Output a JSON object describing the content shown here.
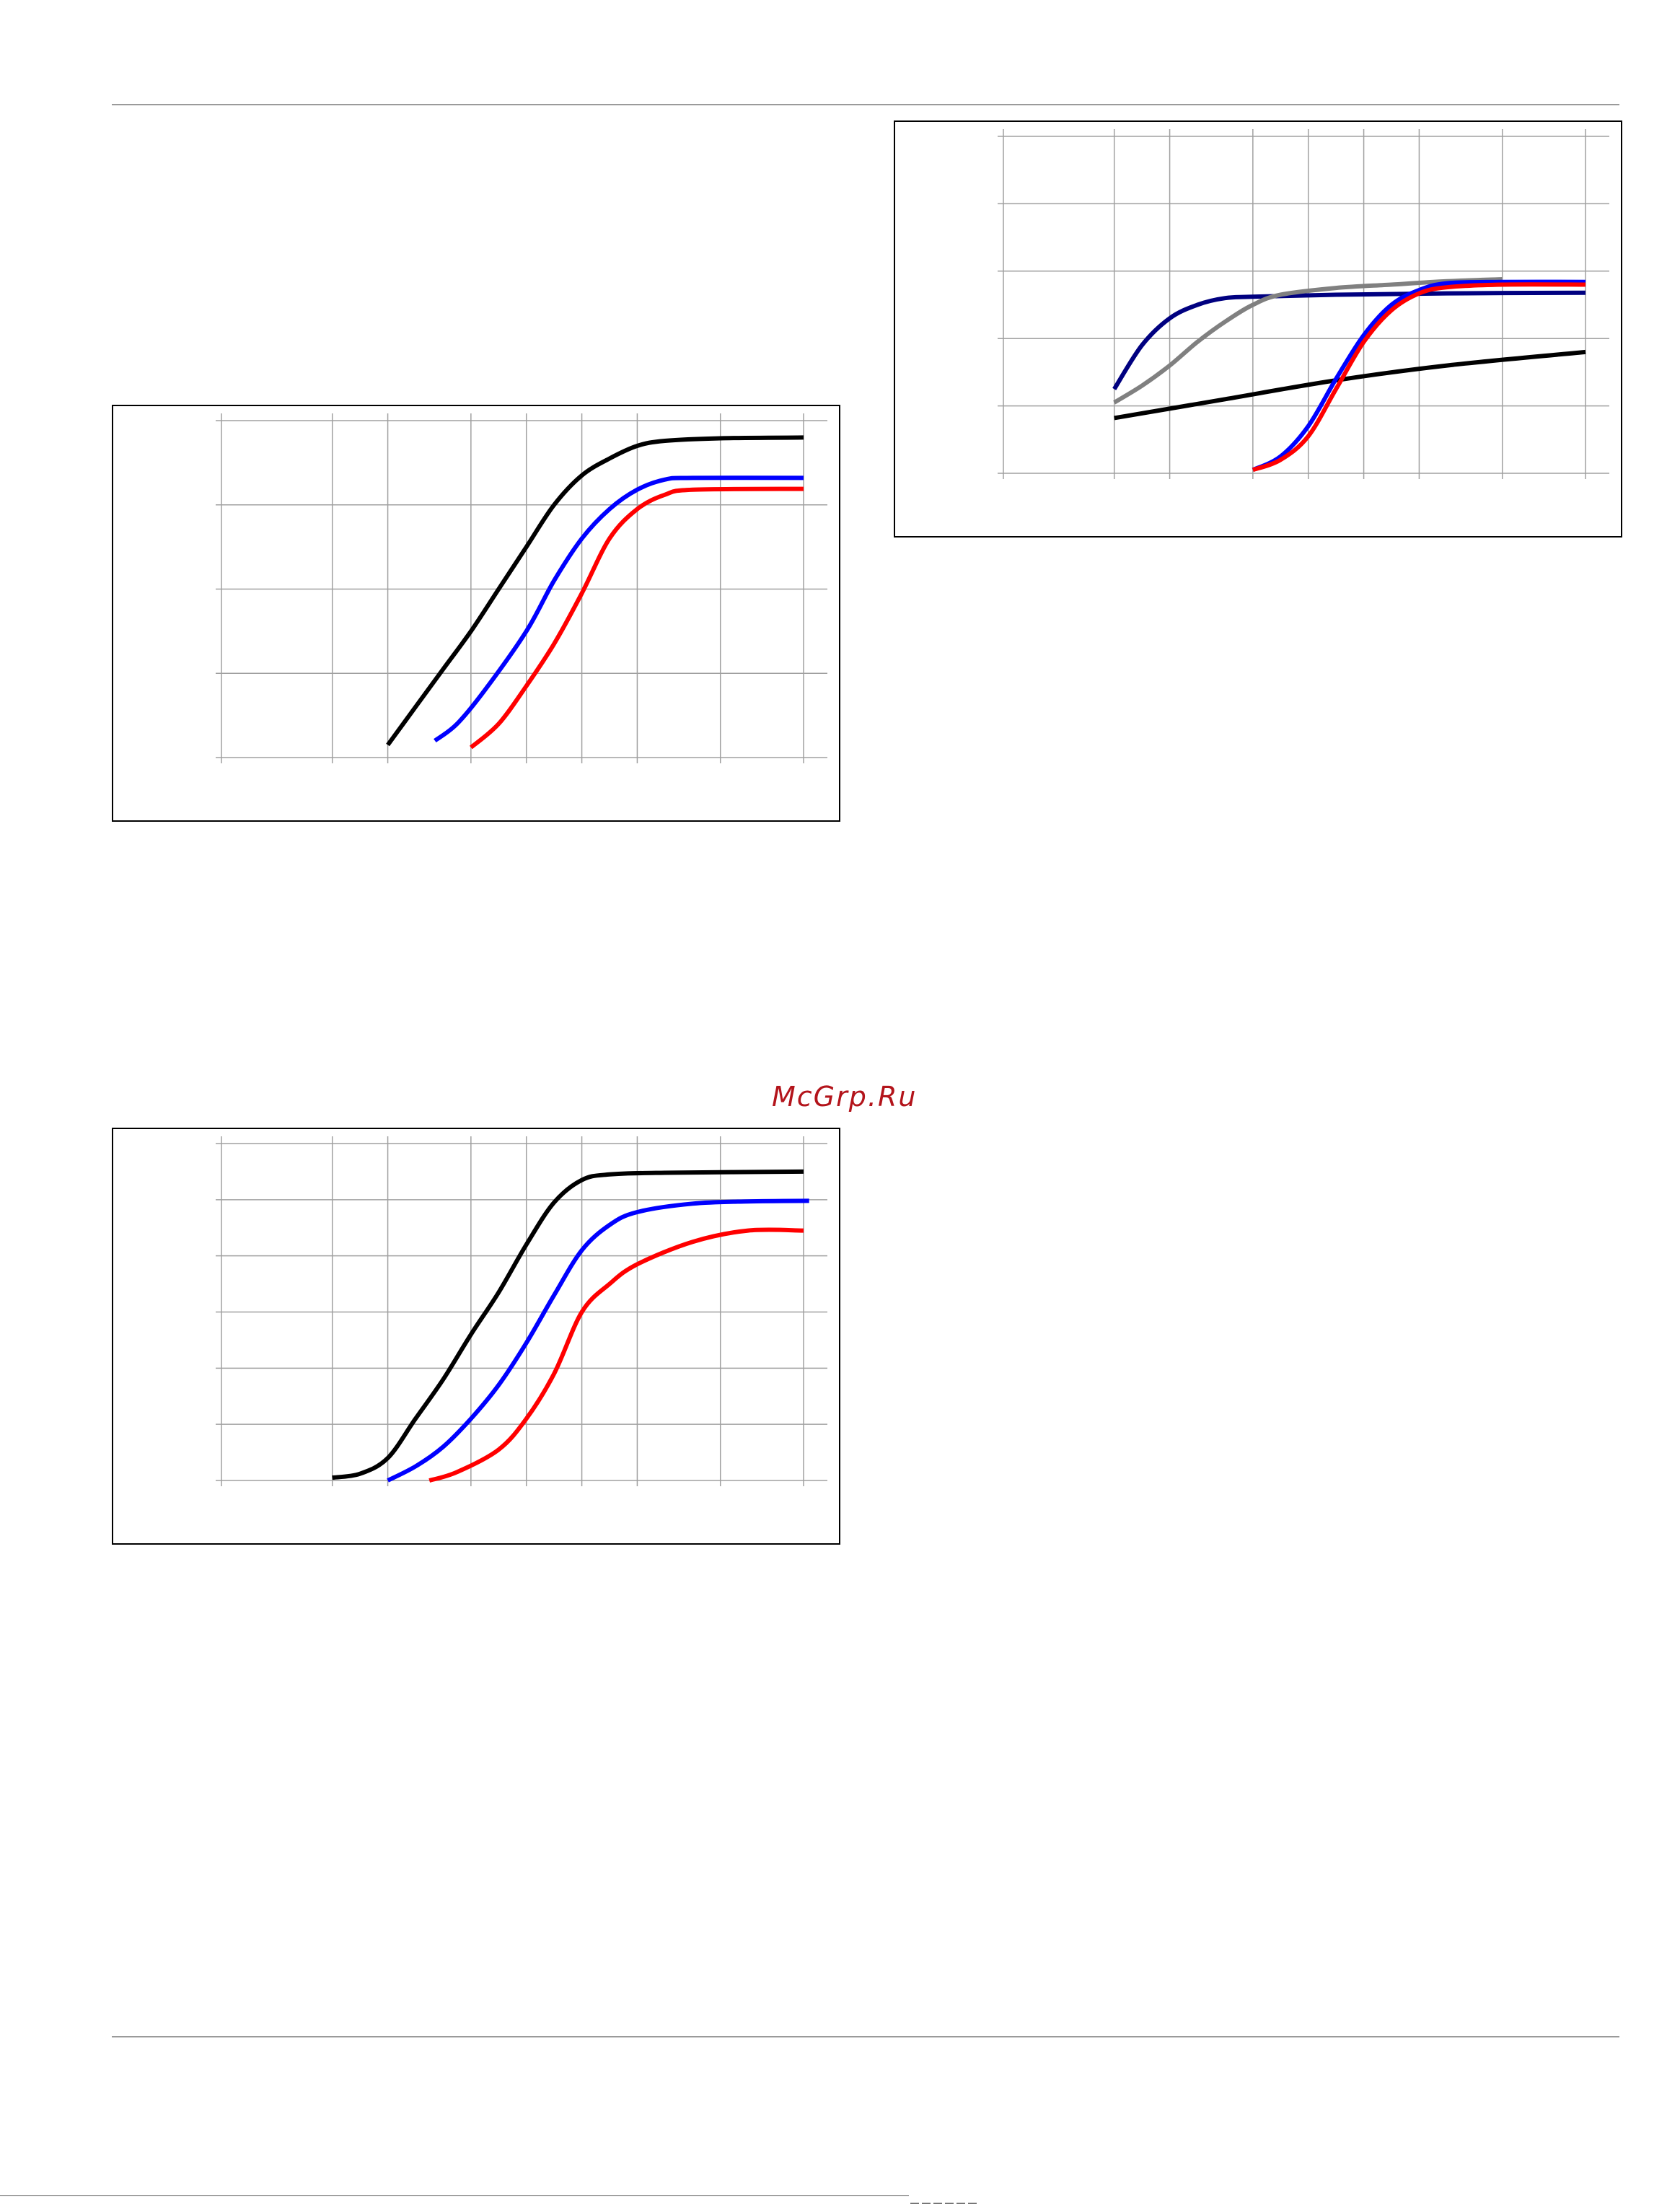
{
  "watermark": "McGrp.Ru",
  "colors": {
    "black": "#000000",
    "blue": "#0000ff",
    "red": "#ff0000",
    "navy": "#000080",
    "gray": "#808080",
    "grid": "#a0a0a0"
  },
  "chart_data": [
    {
      "type": "line",
      "grid": true,
      "xgrid": [
        0,
        2,
        3,
        4.5,
        5.5,
        6.5,
        7.5,
        9,
        10.5
      ],
      "ygrid": [
        0,
        1,
        2,
        3,
        4
      ],
      "xlim": [
        0,
        10.5
      ],
      "ylim": [
        0,
        4
      ],
      "series": [
        {
          "color": "#000000",
          "points": [
            [
              3,
              0.15
            ],
            [
              3.5,
              0.6
            ],
            [
              4,
              1.05
            ],
            [
              4.5,
              1.5
            ],
            [
              5,
              2.0
            ],
            [
              5.5,
              2.5
            ],
            [
              6,
              3.0
            ],
            [
              6.5,
              3.35
            ],
            [
              7,
              3.55
            ],
            [
              7.5,
              3.7
            ],
            [
              8,
              3.76
            ],
            [
              9,
              3.79
            ],
            [
              10.5,
              3.8
            ]
          ]
        },
        {
          "color": "#0000ff",
          "points": [
            [
              3.85,
              0.2
            ],
            [
              4.25,
              0.4
            ],
            [
              4.75,
              0.8
            ],
            [
              5.5,
              1.5
            ],
            [
              6,
              2.1
            ],
            [
              6.5,
              2.6
            ],
            [
              7,
              2.95
            ],
            [
              7.5,
              3.18
            ],
            [
              8,
              3.3
            ],
            [
              8.5,
              3.32
            ],
            [
              10.5,
              3.32
            ]
          ]
        },
        {
          "color": "#ff0000",
          "points": [
            [
              4.5,
              0.12
            ],
            [
              5,
              0.4
            ],
            [
              5.5,
              0.85
            ],
            [
              6,
              1.35
            ],
            [
              6.5,
              1.95
            ],
            [
              7,
              2.6
            ],
            [
              7.5,
              2.95
            ],
            [
              8,
              3.12
            ],
            [
              8.5,
              3.18
            ],
            [
              10.5,
              3.19
            ]
          ]
        }
      ]
    },
    {
      "type": "line",
      "grid": true,
      "xgrid": [
        0,
        2,
        3,
        4.5,
        5.5,
        6.5,
        7.5,
        9,
        10.5
      ],
      "ygrid": [
        0,
        1,
        2,
        3,
        4,
        5,
        6
      ],
      "xlim": [
        0,
        10.5
      ],
      "ylim": [
        0,
        6
      ],
      "series": [
        {
          "color": "#000000",
          "points": [
            [
              2,
              0.05
            ],
            [
              2.5,
              0.12
            ],
            [
              3,
              0.4
            ],
            [
              3.5,
              1.1
            ],
            [
              4,
              1.8
            ],
            [
              4.5,
              2.6
            ],
            [
              5,
              3.35
            ],
            [
              5.5,
              4.2
            ],
            [
              6,
              4.95
            ],
            [
              6.5,
              5.35
            ],
            [
              7,
              5.45
            ],
            [
              8,
              5.48
            ],
            [
              10.5,
              5.5
            ]
          ]
        },
        {
          "color": "#0000ff",
          "points": [
            [
              3,
              0.0
            ],
            [
              3.5,
              0.25
            ],
            [
              4,
              0.6
            ],
            [
              4.5,
              1.1
            ],
            [
              5,
              1.7
            ],
            [
              5.5,
              2.45
            ],
            [
              6,
              3.3
            ],
            [
              6.5,
              4.1
            ],
            [
              7,
              4.55
            ],
            [
              7.5,
              4.78
            ],
            [
              8.5,
              4.93
            ],
            [
              9.5,
              4.97
            ],
            [
              10.6,
              4.98
            ]
          ]
        },
        {
          "color": "#ff0000",
          "points": [
            [
              3.75,
              0.0
            ],
            [
              4.25,
              0.15
            ],
            [
              5,
              0.55
            ],
            [
              5.5,
              1.1
            ],
            [
              6,
              1.9
            ],
            [
              6.5,
              3.0
            ],
            [
              7,
              3.5
            ],
            [
              7.5,
              3.85
            ],
            [
              8.5,
              4.25
            ],
            [
              9.5,
              4.45
            ],
            [
              10.5,
              4.45
            ]
          ]
        }
      ]
    },
    {
      "type": "line",
      "grid": true,
      "xgrid": [
        0,
        2,
        3,
        4.5,
        5.5,
        6.5,
        7.5,
        9,
        10.5
      ],
      "ygrid": [
        0,
        1,
        2,
        3,
        4,
        5
      ],
      "xlim": [
        0,
        10.5
      ],
      "ylim": [
        0,
        5
      ],
      "series": [
        {
          "color": "#000080",
          "points": [
            [
              2,
              1.25
            ],
            [
              2.5,
              1.9
            ],
            [
              3,
              2.3
            ],
            [
              3.5,
              2.5
            ],
            [
              4,
              2.6
            ],
            [
              4.5,
              2.62
            ],
            [
              6,
              2.65
            ],
            [
              8,
              2.67
            ],
            [
              10.5,
              2.68
            ]
          ]
        },
        {
          "color": "#808080",
          "points": [
            [
              2,
              1.05
            ],
            [
              2.5,
              1.3
            ],
            [
              3,
              1.6
            ],
            [
              3.5,
              1.95
            ],
            [
              4,
              2.25
            ],
            [
              4.5,
              2.5
            ],
            [
              5,
              2.65
            ],
            [
              6,
              2.75
            ],
            [
              7,
              2.8
            ],
            [
              8,
              2.85
            ],
            [
              9,
              2.88
            ]
          ]
        },
        {
          "color": "#000000",
          "points": [
            [
              2,
              0.82
            ],
            [
              4,
              1.1
            ],
            [
              6,
              1.38
            ],
            [
              8,
              1.6
            ],
            [
              10.5,
              1.8
            ]
          ]
        },
        {
          "color": "#0000ff",
          "points": [
            [
              4.5,
              0.05
            ],
            [
              5,
              0.25
            ],
            [
              5.5,
              0.7
            ],
            [
              6,
              1.4
            ],
            [
              6.5,
              2.05
            ],
            [
              7,
              2.5
            ],
            [
              7.5,
              2.72
            ],
            [
              8,
              2.82
            ],
            [
              9,
              2.84
            ],
            [
              10.5,
              2.84
            ]
          ]
        },
        {
          "color": "#ff0000",
          "points": [
            [
              4.5,
              0.05
            ],
            [
              5,
              0.2
            ],
            [
              5.5,
              0.55
            ],
            [
              6,
              1.25
            ],
            [
              6.5,
              1.95
            ],
            [
              7,
              2.42
            ],
            [
              7.5,
              2.67
            ],
            [
              8,
              2.76
            ],
            [
              9,
              2.8
            ],
            [
              10.5,
              2.8
            ]
          ]
        }
      ]
    }
  ]
}
